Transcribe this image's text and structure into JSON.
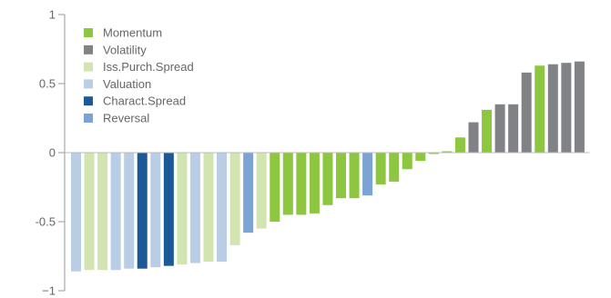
{
  "chart_data": {
    "type": "bar",
    "ylim": [
      -1,
      1
    ],
    "yticks": [
      1,
      0.5,
      0,
      -0.5,
      -1
    ],
    "ytick_labels": [
      "1",
      "0.5",
      "0",
      "-0.5",
      "−1"
    ],
    "grid": false,
    "legend_position": "top-left",
    "series": [
      {
        "name": "Momentum",
        "color": "#8DC63F"
      },
      {
        "name": "Volatility",
        "color": "#808285"
      },
      {
        "name": "Iss.Purch.Spread",
        "color": "#D2E5B1"
      },
      {
        "name": "Valuation",
        "color": "#B9CDE5"
      },
      {
        "name": "Charact.Spread",
        "color": "#1B5A96"
      },
      {
        "name": "Reversal",
        "color": "#7BA3D4"
      }
    ],
    "bars": [
      {
        "value": -0.86,
        "series": "Valuation"
      },
      {
        "value": -0.85,
        "series": "Iss.Purch.Spread"
      },
      {
        "value": -0.85,
        "series": "Iss.Purch.Spread"
      },
      {
        "value": -0.85,
        "series": "Valuation"
      },
      {
        "value": -0.84,
        "series": "Valuation"
      },
      {
        "value": -0.84,
        "series": "Charact.Spread"
      },
      {
        "value": -0.83,
        "series": "Valuation"
      },
      {
        "value": -0.82,
        "series": "Charact.Spread"
      },
      {
        "value": -0.81,
        "series": "Iss.Purch.Spread"
      },
      {
        "value": -0.8,
        "series": "Valuation"
      },
      {
        "value": -0.79,
        "series": "Iss.Purch.Spread"
      },
      {
        "value": -0.79,
        "series": "Valuation"
      },
      {
        "value": -0.67,
        "series": "Iss.Purch.Spread"
      },
      {
        "value": -0.58,
        "series": "Reversal"
      },
      {
        "value": -0.55,
        "series": "Iss.Purch.Spread"
      },
      {
        "value": -0.5,
        "series": "Momentum"
      },
      {
        "value": -0.45,
        "series": "Momentum"
      },
      {
        "value": -0.45,
        "series": "Momentum"
      },
      {
        "value": -0.44,
        "series": "Momentum"
      },
      {
        "value": -0.38,
        "series": "Momentum"
      },
      {
        "value": -0.33,
        "series": "Momentum"
      },
      {
        "value": -0.33,
        "series": "Momentum"
      },
      {
        "value": -0.31,
        "series": "Reversal"
      },
      {
        "value": -0.23,
        "series": "Momentum"
      },
      {
        "value": -0.21,
        "series": "Momentum"
      },
      {
        "value": -0.12,
        "series": "Momentum"
      },
      {
        "value": -0.06,
        "series": "Momentum"
      },
      {
        "value": -0.01,
        "series": "Momentum"
      },
      {
        "value": 0.01,
        "series": "Momentum"
      },
      {
        "value": 0.11,
        "series": "Momentum"
      },
      {
        "value": 0.22,
        "series": "Volatility"
      },
      {
        "value": 0.31,
        "series": "Momentum"
      },
      {
        "value": 0.35,
        "series": "Volatility"
      },
      {
        "value": 0.35,
        "series": "Volatility"
      },
      {
        "value": 0.58,
        "series": "Volatility"
      },
      {
        "value": 0.63,
        "series": "Momentum"
      },
      {
        "value": 0.64,
        "series": "Volatility"
      },
      {
        "value": 0.65,
        "series": "Volatility"
      },
      {
        "value": 0.66,
        "series": "Volatility"
      }
    ]
  }
}
